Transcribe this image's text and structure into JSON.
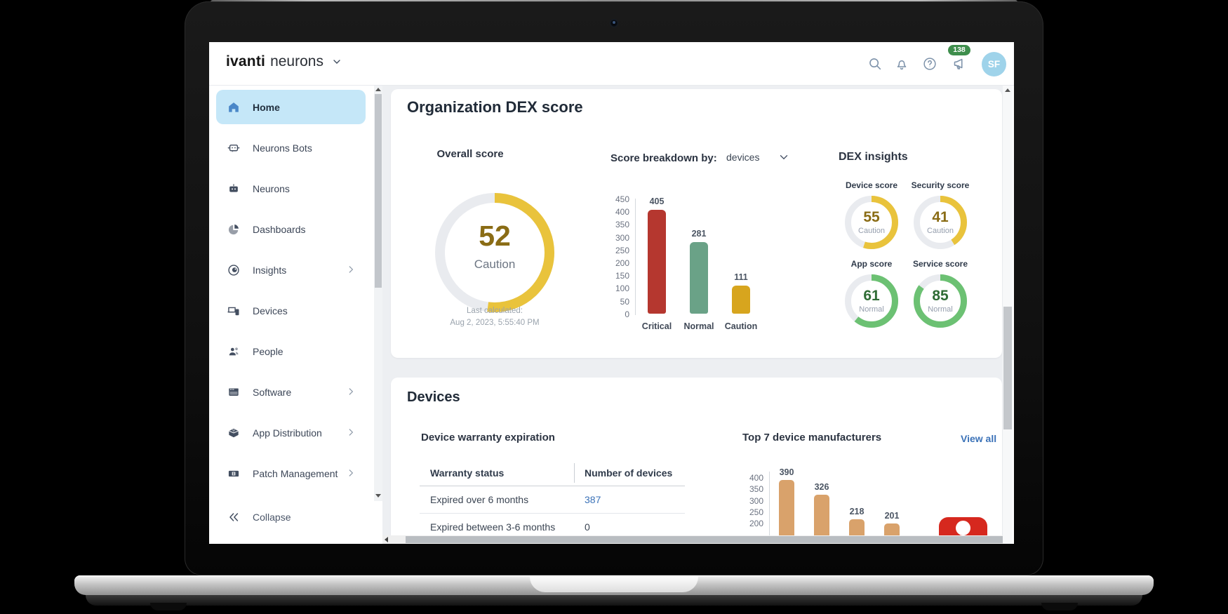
{
  "topbar": {
    "brand_primary": "ivanti",
    "brand_secondary": "neurons",
    "notification_count": "138",
    "avatar_initials": "SF"
  },
  "sidebar": {
    "items": [
      {
        "id": "home",
        "label": "Home",
        "icon": "home",
        "selected": true,
        "chevron": false
      },
      {
        "id": "neurons-bots",
        "label": "Neurons Bots",
        "icon": "bot",
        "selected": false,
        "chevron": false
      },
      {
        "id": "neurons",
        "label": "Neurons",
        "icon": "robot",
        "selected": false,
        "chevron": false
      },
      {
        "id": "dashboards",
        "label": "Dashboards",
        "icon": "pie",
        "selected": false,
        "chevron": false
      },
      {
        "id": "insights",
        "label": "Insights",
        "icon": "eye",
        "selected": false,
        "chevron": true
      },
      {
        "id": "devices",
        "label": "Devices",
        "icon": "devices",
        "selected": false,
        "chevron": false
      },
      {
        "id": "people",
        "label": "People",
        "icon": "people",
        "selected": false,
        "chevron": false
      },
      {
        "id": "software",
        "label": "Software",
        "icon": "software",
        "selected": false,
        "chevron": true
      },
      {
        "id": "app-distribution",
        "label": "App Distribution",
        "icon": "box",
        "selected": false,
        "chevron": true
      },
      {
        "id": "patch-management",
        "label": "Patch Management",
        "icon": "patch",
        "selected": false,
        "chevron": true
      }
    ],
    "collapse_label": "Collapse"
  },
  "dex_card": {
    "title": "Organization DEX score",
    "overall": {
      "label": "Overall score",
      "value": "52",
      "status": "Caution",
      "last_calculated_label": "Last calculated:",
      "last_calculated_value": "Aug 2, 2023, 5:55:40 PM"
    },
    "breakdown": {
      "label": "Score breakdown by:",
      "selected_option": "devices"
    },
    "insights": {
      "label": "DEX insights"
    }
  },
  "devices_card": {
    "title": "Devices",
    "warranty": {
      "label": "Device warranty expiration",
      "columns": [
        "Warranty status",
        "Number of devices"
      ],
      "rows": [
        {
          "status": "Expired over 6 months",
          "count": "387",
          "link": true
        },
        {
          "status": "Expired between 3-6 months",
          "count": "0",
          "link": false
        }
      ]
    },
    "manufacturers": {
      "label": "Top 7 device manufacturers",
      "view_all_label": "View all"
    }
  },
  "chart_data": [
    {
      "type": "donut-gauge",
      "title": "Overall score",
      "value": 52,
      "max": 100,
      "status": "Caution",
      "ring_color": "#e9c33c",
      "track_color": "#e9ebef",
      "value_color": "#8a6c15"
    },
    {
      "type": "bar",
      "title": "Score breakdown by: devices",
      "categories": [
        "Critical",
        "Normal",
        "Caution"
      ],
      "values": [
        405,
        281,
        111
      ],
      "colors": [
        "#b5372f",
        "#6aa287",
        "#d7a51e"
      ],
      "ylabel": "",
      "ylim": [
        0,
        450
      ],
      "ytick_step": 50,
      "grid": false,
      "value_labels": true
    },
    {
      "type": "donut-gauge-group",
      "title": "DEX insights",
      "max": 100,
      "gauges": [
        {
          "label": "Device score",
          "value": 55,
          "status": "Caution",
          "ring_color": "#e9c33c",
          "value_color": "#8a6c15"
        },
        {
          "label": "Security score",
          "value": 41,
          "status": "Caution",
          "ring_color": "#e9c33c",
          "value_color": "#8a6c15"
        },
        {
          "label": "App score",
          "value": 61,
          "status": "Normal",
          "ring_color": "#6cc173",
          "value_color": "#2f6c35"
        },
        {
          "label": "Service score",
          "value": 85,
          "status": "Normal",
          "ring_color": "#6cc173",
          "value_color": "#2f6c35"
        }
      ],
      "track_color": "#e9ebef"
    },
    {
      "type": "table",
      "title": "Device warranty expiration",
      "columns": [
        "Warranty status",
        "Number of devices"
      ],
      "rows": [
        [
          "Expired over 6 months",
          "387"
        ],
        [
          "Expired between 3-6 months",
          "0"
        ]
      ]
    },
    {
      "type": "bar",
      "title": "Top 7 device manufacturers",
      "categories": [
        "",
        "",
        "",
        ""
      ],
      "values": [
        390,
        326,
        218,
        201
      ],
      "colors": [
        "#d9a26b",
        "#d9a26b",
        "#d9a26b",
        "#d9a26b"
      ],
      "ylim_visible": [
        200,
        400
      ],
      "ytick_step": 50,
      "value_labels": true,
      "note": "chart bottom cut off by viewport; 7 manufacturers total, 4 bars visible"
    }
  ],
  "colors": {
    "accent_caution": "#e9c33c",
    "accent_normal": "#6cc173",
    "bar_critical": "#b5372f",
    "bar_normal": "#6aa287",
    "bar_caution": "#d7a51e",
    "bar_tan": "#d9a26b",
    "link_blue": "#3b72b8",
    "sidebar_selected_bg": "#c5e7f8",
    "badge_green": "#3e8e4c",
    "avatar_blue": "#9fd3ea",
    "assistant_red": "#d6281e"
  }
}
